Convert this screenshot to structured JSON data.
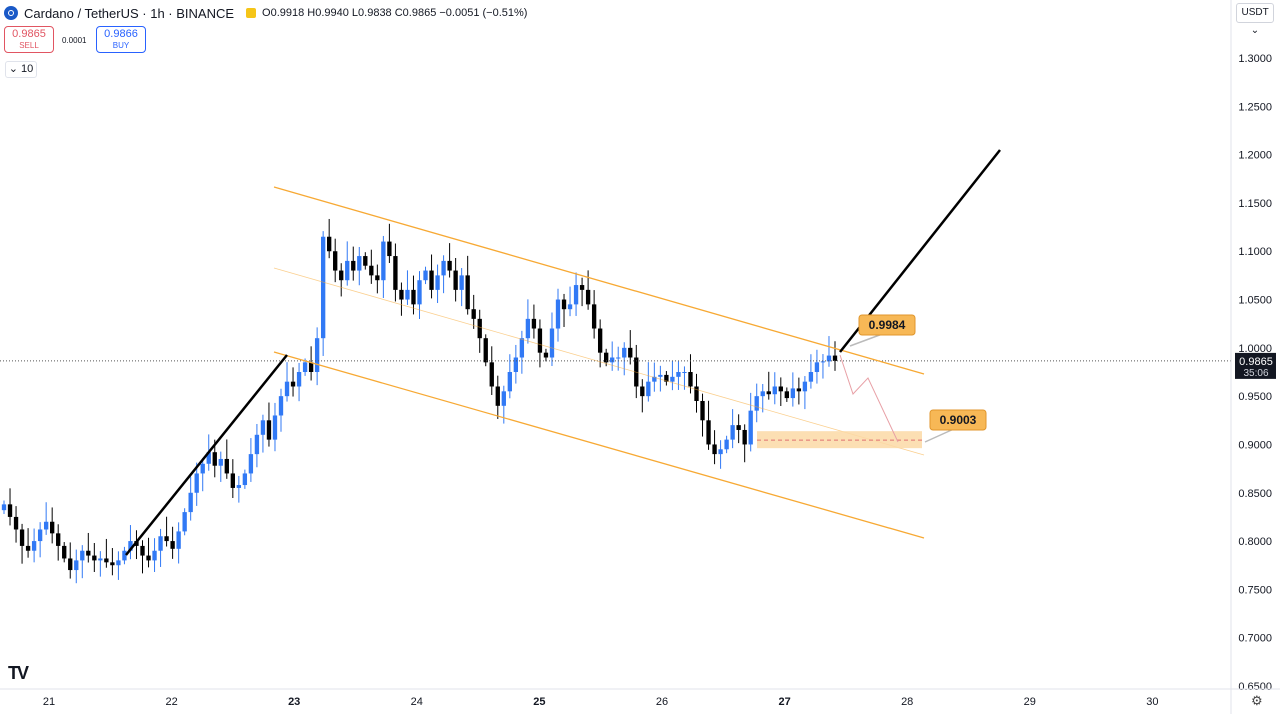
{
  "header": {
    "symbol": "Cardano / TetherUS · 1h · BINANCE",
    "ohlc": "O0.9918 H0.9940 L0.9838 C0.9865 −0.0051 (−0.51%)"
  },
  "trade": {
    "sell_price": "0.9865",
    "sell_label": "SELL",
    "spread": "0.0001",
    "buy_price": "0.9866",
    "buy_label": "BUY"
  },
  "interval_button": "10",
  "currency_button": "USDT",
  "icons": {
    "logo": "cardano-logo-icon",
    "indicator": "indicator-square-icon",
    "chevron": "chevron-down-icon",
    "settings": "gear-icon",
    "brand": "tradingview-logo"
  },
  "colors": {
    "up": "#3179f5",
    "down": "#000000",
    "channel": "#f7a934",
    "zone": "#fbd9a6",
    "projection": "#e8a0a6",
    "trendline": "#000000"
  },
  "chart_data": {
    "type": "candlestick",
    "y_ticks": [
      "1.3000",
      "1.2500",
      "1.2000",
      "1.1500",
      "1.1000",
      "1.0500",
      "1.0000",
      "0.9500",
      "0.9000",
      "0.8500",
      "0.8000",
      "0.7500",
      "0.7000",
      "0.6500"
    ],
    "ylim": [
      0.65,
      1.33
    ],
    "x_ticks": [
      "21",
      "22",
      "23",
      "24",
      "25",
      "26",
      "27",
      "28",
      "29",
      "30"
    ],
    "bold_x_ticks": [
      "23",
      "25",
      "27"
    ],
    "current_price": {
      "price": 0.9865,
      "label": "0.9865",
      "countdown": "35:06"
    },
    "annotations": [
      {
        "label": "0.9984",
        "price": 0.9984
      },
      {
        "label": "0.9003",
        "price": 0.9003
      }
    ],
    "closes": [
      0.838,
      0.825,
      0.812,
      0.795,
      0.79,
      0.8,
      0.812,
      0.82,
      0.808,
      0.795,
      0.782,
      0.77,
      0.78,
      0.79,
      0.785,
      0.78,
      0.782,
      0.778,
      0.775,
      0.78,
      0.79,
      0.8,
      0.795,
      0.785,
      0.78,
      0.79,
      0.805,
      0.8,
      0.792,
      0.81,
      0.83,
      0.85,
      0.87,
      0.88,
      0.892,
      0.878,
      0.885,
      0.87,
      0.855,
      0.858,
      0.87,
      0.89,
      0.91,
      0.925,
      0.905,
      0.93,
      0.95,
      0.965,
      0.96,
      0.975,
      0.985,
      0.975,
      1.01,
      1.115,
      1.1,
      1.08,
      1.07,
      1.09,
      1.08,
      1.095,
      1.085,
      1.075,
      1.07,
      1.11,
      1.095,
      1.06,
      1.05,
      1.06,
      1.045,
      1.07,
      1.08,
      1.06,
      1.075,
      1.09,
      1.08,
      1.06,
      1.075,
      1.04,
      1.03,
      1.01,
      0.985,
      0.96,
      0.94,
      0.955,
      0.975,
      0.99,
      1.01,
      1.03,
      1.02,
      0.995,
      0.99,
      1.02,
      1.05,
      1.04,
      1.045,
      1.065,
      1.06,
      1.045,
      1.02,
      0.995,
      0.985,
      0.99,
      0.99,
      1.0,
      0.99,
      0.96,
      0.95,
      0.965,
      0.97,
      0.972,
      0.965,
      0.97,
      0.975,
      0.975,
      0.96,
      0.945,
      0.925,
      0.9,
      0.89,
      0.895,
      0.905,
      0.92,
      0.915,
      0.9,
      0.935,
      0.95,
      0.955,
      0.952,
      0.96,
      0.955,
      0.948,
      0.958,
      0.955,
      0.965,
      0.975,
      0.985,
      0.986,
      0.992,
      0.9865
    ]
  }
}
